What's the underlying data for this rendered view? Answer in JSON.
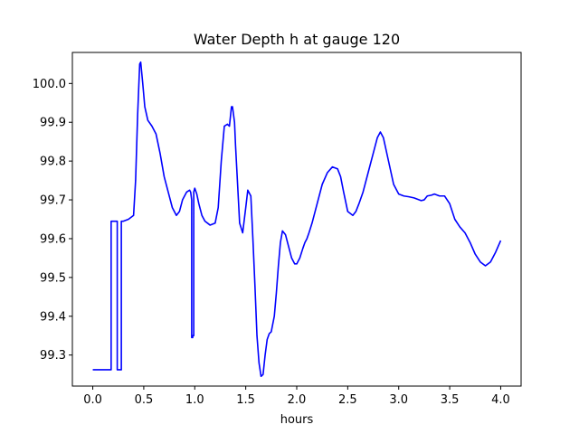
{
  "chart_data": {
    "type": "line",
    "title": "Water Depth h at gauge 120",
    "xlabel": "hours",
    "ylabel": "",
    "xlim": [
      -0.2,
      4.2
    ],
    "ylim": [
      99.22,
      100.08
    ],
    "x_ticks": [
      0.0,
      0.5,
      1.0,
      1.5,
      2.0,
      2.5,
      3.0,
      3.5,
      4.0
    ],
    "x_tick_labels": [
      "0.0",
      "0.5",
      "1.0",
      "1.5",
      "2.0",
      "2.5",
      "3.0",
      "3.5",
      "4.0"
    ],
    "y_ticks": [
      99.3,
      99.4,
      99.5,
      99.6,
      99.7,
      99.8,
      99.9,
      100.0
    ],
    "y_tick_labels": [
      "99.3",
      "99.4",
      "99.5",
      "99.6",
      "99.7",
      "99.8",
      "99.9",
      "100.0"
    ],
    "grid": false,
    "line_color": "#0000ff",
    "series": [
      {
        "x": [
          0.0,
          0.05,
          0.1,
          0.17,
          0.18,
          0.18,
          0.23,
          0.24,
          0.24,
          0.26,
          0.28,
          0.28,
          0.3,
          0.35,
          0.4,
          0.42,
          0.44,
          0.46,
          0.47,
          0.49,
          0.51,
          0.54,
          0.58,
          0.62,
          0.66,
          0.7,
          0.74,
          0.78,
          0.82,
          0.85,
          0.88,
          0.92,
          0.95,
          0.96,
          0.97,
          0.97,
          0.98,
          0.98,
          0.99,
          0.99,
          1.0,
          1.02,
          1.04,
          1.07,
          1.1,
          1.15,
          1.2,
          1.23,
          1.26,
          1.29,
          1.32,
          1.34,
          1.36,
          1.37,
          1.39,
          1.4,
          1.42,
          1.44,
          1.47,
          1.5,
          1.52,
          1.55,
          1.57,
          1.59,
          1.61,
          1.63,
          1.65,
          1.67,
          1.69,
          1.71,
          1.73,
          1.75,
          1.78,
          1.8,
          1.82,
          1.84,
          1.86,
          1.89,
          1.92,
          1.95,
          1.98,
          2.0,
          2.03,
          2.06,
          2.08,
          2.1,
          2.12,
          2.15,
          2.2,
          2.25,
          2.3,
          2.35,
          2.4,
          2.43,
          2.46,
          2.5,
          2.55,
          2.58,
          2.61,
          2.65,
          2.7,
          2.75,
          2.79,
          2.82,
          2.85,
          2.9,
          2.95,
          3.0,
          3.05,
          3.1,
          3.15,
          3.2,
          3.22,
          3.25,
          3.28,
          3.32,
          3.35,
          3.4,
          3.45,
          3.5,
          3.55,
          3.6,
          3.65,
          3.7,
          3.75,
          3.8,
          3.85,
          3.9,
          3.95,
          4.0
        ],
        "y": [
          99.262,
          99.262,
          99.262,
          99.262,
          99.262,
          99.645,
          99.645,
          99.645,
          99.262,
          99.262,
          99.262,
          99.645,
          99.645,
          99.65,
          99.66,
          99.75,
          99.92,
          100.05,
          100.055,
          100.0,
          99.94,
          99.905,
          99.89,
          99.87,
          99.82,
          99.76,
          99.72,
          99.68,
          99.66,
          99.67,
          99.7,
          99.72,
          99.725,
          99.72,
          99.7,
          99.345,
          99.345,
          99.35,
          99.35,
          99.72,
          99.73,
          99.715,
          99.69,
          99.66,
          99.645,
          99.635,
          99.64,
          99.68,
          99.8,
          99.89,
          99.895,
          99.89,
          99.94,
          99.94,
          99.9,
          99.84,
          99.74,
          99.64,
          99.615,
          99.68,
          99.725,
          99.71,
          99.6,
          99.48,
          99.35,
          99.28,
          99.245,
          99.25,
          99.3,
          99.34,
          99.355,
          99.36,
          99.4,
          99.46,
          99.53,
          99.59,
          99.62,
          99.61,
          99.58,
          99.55,
          99.535,
          99.535,
          99.55,
          99.575,
          99.59,
          99.6,
          99.615,
          99.64,
          99.69,
          99.74,
          99.77,
          99.785,
          99.78,
          99.76,
          99.72,
          99.67,
          99.66,
          99.67,
          99.69,
          99.72,
          99.77,
          99.82,
          99.86,
          99.875,
          99.86,
          99.8,
          99.74,
          99.715,
          99.71,
          99.708,
          99.705,
          99.7,
          99.698,
          99.7,
          99.71,
          99.712,
          99.715,
          99.71,
          99.71,
          99.69,
          99.65,
          99.63,
          99.615,
          99.59,
          99.56,
          99.54,
          99.53,
          99.54,
          99.565,
          99.595
        ]
      }
    ]
  }
}
